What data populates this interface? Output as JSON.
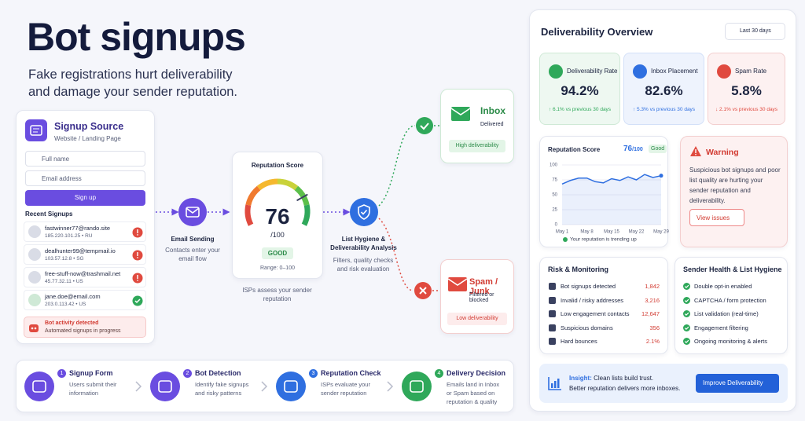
{
  "hero": {
    "title": "Bot signups",
    "subtitle": "Fake registrations hurt deliverability and damage your sender reputation."
  },
  "signup_source": {
    "title": "Signup Source",
    "subtitle": "Website / Landing Page",
    "fields": [
      "Full name",
      "Email address"
    ],
    "button": "Sign up",
    "recent_title": "Recent Signups",
    "signups": [
      {
        "email": "fastwinner77@rando.site",
        "meta": "185.220.101.25 • RU",
        "status": "bot"
      },
      {
        "email": "dealhunter99@tempmail.io",
        "meta": "103.57.12.8 • SG",
        "status": "bot"
      },
      {
        "email": "free-stuff-now@trashmail.net",
        "meta": "45.77.32.11 • US",
        "status": "bot"
      },
      {
        "email": "jane.doe@email.com",
        "meta": "203.0.113.42 • US",
        "status": "ok"
      }
    ],
    "alert_title": "Bot activity detected",
    "alert_text": "Automated signups in progress"
  },
  "email_sending": {
    "title": "Email Sending",
    "text": "Contacts enter your email flow"
  },
  "reputation": {
    "title": "Reputation Score",
    "score": 76,
    "max": "/100",
    "badge": "GOOD",
    "range": "Range: 0–100",
    "caption": "ISPs assess your sender reputation"
  },
  "hygiene": {
    "title": "List Hygiene & Deliverability Analysis",
    "text": "Filters, quality checks and risk evaluation"
  },
  "inbox": {
    "title": "Inbox",
    "subtitle": "Delivered",
    "badge": "High deliverability"
  },
  "spam": {
    "title": "Spam / Junk",
    "subtitle": "Filtered or blocked",
    "badge": "Low deliverability"
  },
  "steps": [
    {
      "number": "1",
      "title": "Signup Form",
      "text": "Users submit their information"
    },
    {
      "number": "2",
      "title": "Bot Detection",
      "text": "Identify fake signups and risky patterns"
    },
    {
      "number": "3",
      "title": "Reputation Check",
      "text": "ISPs evaluate your sender reputation"
    },
    {
      "number": "4",
      "title": "Delivery Decision",
      "text": "Emails land in Inbox or Spam based on reputation & quality"
    }
  ],
  "overview": {
    "title": "Deliverability Overview",
    "period": "Last 30 days",
    "kpis": [
      {
        "label": "Deliverability Rate",
        "value": "94.2%",
        "change": "↑ 6.1% vs previous 30 days"
      },
      {
        "label": "Inbox Placement",
        "value": "82.6%",
        "change": "↑ 5.3% vs previous 30 days"
      },
      {
        "label": "Spam Rate",
        "value": "5.8%",
        "change": "↓ 2.1% vs previous 30 days"
      }
    ]
  },
  "chart_data": {
    "type": "line",
    "title": "Reputation Score",
    "score_label": "76",
    "score_max": "/100",
    "badge": "Good",
    "categories": [
      "May 1",
      null,
      null,
      "May 8",
      null,
      null,
      "May 15",
      null,
      null,
      "May 22",
      null,
      null,
      "May 29"
    ],
    "values": [
      68,
      74,
      78,
      78,
      72,
      70,
      77,
      74,
      80,
      75,
      84,
      79,
      82
    ],
    "color": "#2f6fe0",
    "ylim": [
      0,
      100
    ],
    "yticks": [
      0,
      25,
      50,
      75,
      100
    ],
    "grid": true,
    "note": "Your reputation is trending up"
  },
  "warning": {
    "title": "Warning",
    "text": "Suspicious bot signups and poor list quality are hurting your sender reputation and deliverability.",
    "button": "View issues"
  },
  "risk": {
    "title": "Risk & Monitoring",
    "rows": [
      {
        "label": "Bot signups detected",
        "value": "1,842"
      },
      {
        "label": "Invalid / risky addresses",
        "value": "3,216"
      },
      {
        "label": "Low engagement contacts",
        "value": "12,647"
      },
      {
        "label": "Suspicious domains",
        "value": "356"
      },
      {
        "label": "Hard bounces",
        "value": "2.1%"
      }
    ]
  },
  "health": {
    "title": "Sender Health & List Hygiene",
    "items": [
      "Double opt-in enabled",
      "CAPTCHA / form protection",
      "List validation (real-time)",
      "Engagement filtering",
      "Ongoing monitoring & alerts"
    ]
  },
  "insight": {
    "label": "Insight:",
    "text": "Clean lists build trust.",
    "text2": "Better reputation delivers more inboxes.",
    "button": "Improve Deliverability"
  }
}
